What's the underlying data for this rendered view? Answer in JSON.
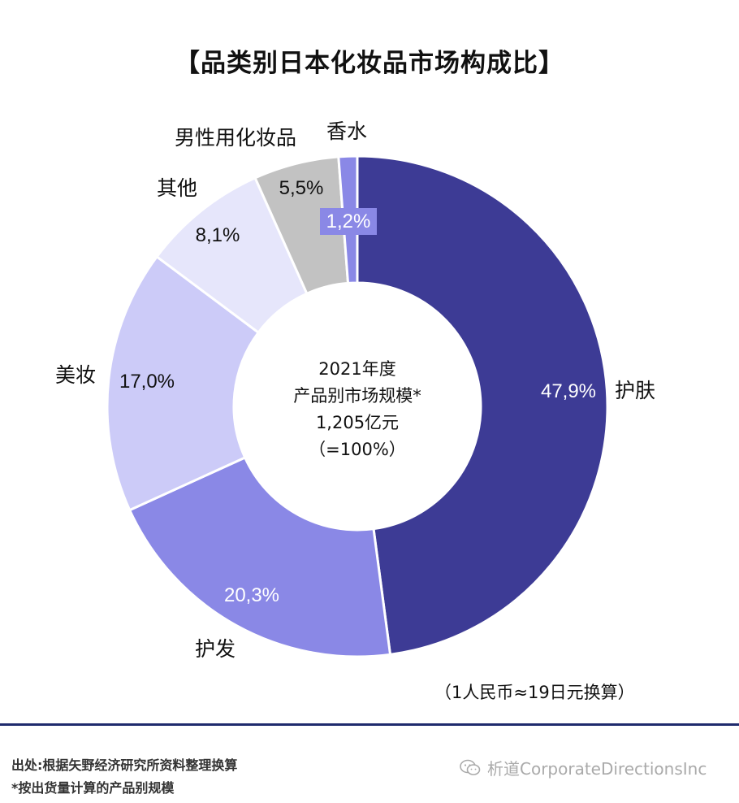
{
  "chart_data": {
    "type": "pie",
    "title": "【品类别日本化妆品市场构成比】",
    "slices": [
      {
        "label": "护肤",
        "value": 47.9,
        "display": "47,9%",
        "color": "#3d3b95"
      },
      {
        "label": "护发",
        "value": 20.3,
        "display": "20,3%",
        "color": "#8a88e6"
      },
      {
        "label": "美妆",
        "value": 17.0,
        "display": "17,0%",
        "color": "#cccbf8"
      },
      {
        "label": "其他",
        "value": 8.1,
        "display": "8,1%",
        "color": "#e6e6fb"
      },
      {
        "label": "男性用化妆品",
        "value": 5.5,
        "display": "5,5%",
        "color": "#c2c2c2"
      },
      {
        "label": "香水",
        "value": 1.2,
        "display": "1,2%",
        "color": "#8a88e6"
      }
    ],
    "center_lines": [
      "2021年度",
      "产品别市场规模*",
      "1,205亿元",
      "（=100%）"
    ]
  },
  "conversion_note": "（1人民币≈19日元换算）",
  "footer": {
    "source": "出处:根据矢野经济研究所资料整理换算",
    "note": "*按出货量计算的产品别规模"
  },
  "watermark": {
    "icon": "wechat-icon",
    "text": "析道CorporateDirectionsInc"
  }
}
